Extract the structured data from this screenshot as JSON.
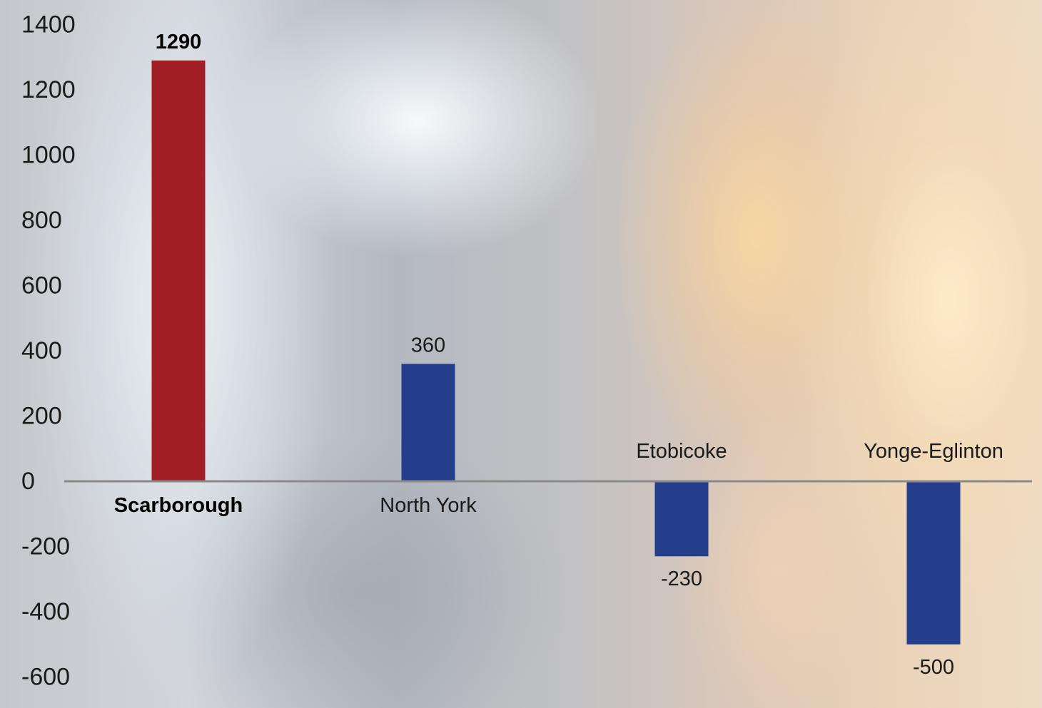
{
  "chart_data": {
    "type": "bar",
    "categories": [
      "Scarborough",
      "North York",
      "Etobicoke",
      "Yonge-Eglinton"
    ],
    "values": [
      1290,
      360,
      -230,
      -500
    ],
    "data_labels": [
      "1290",
      "360",
      "-230",
      "-500"
    ],
    "highlight_index": 0,
    "colors": {
      "highlight": "#a11e25",
      "default": "#253e8c",
      "axis": "#8a8a8a"
    },
    "ylim": [
      -600,
      1400
    ],
    "yticks": [
      "1400",
      "1200",
      "1000",
      "800",
      "600",
      "400",
      "200",
      "0",
      "-200",
      "-400",
      "-600"
    ],
    "title": "",
    "xlabel": "",
    "ylabel": "",
    "grid": false,
    "legend": false
  }
}
